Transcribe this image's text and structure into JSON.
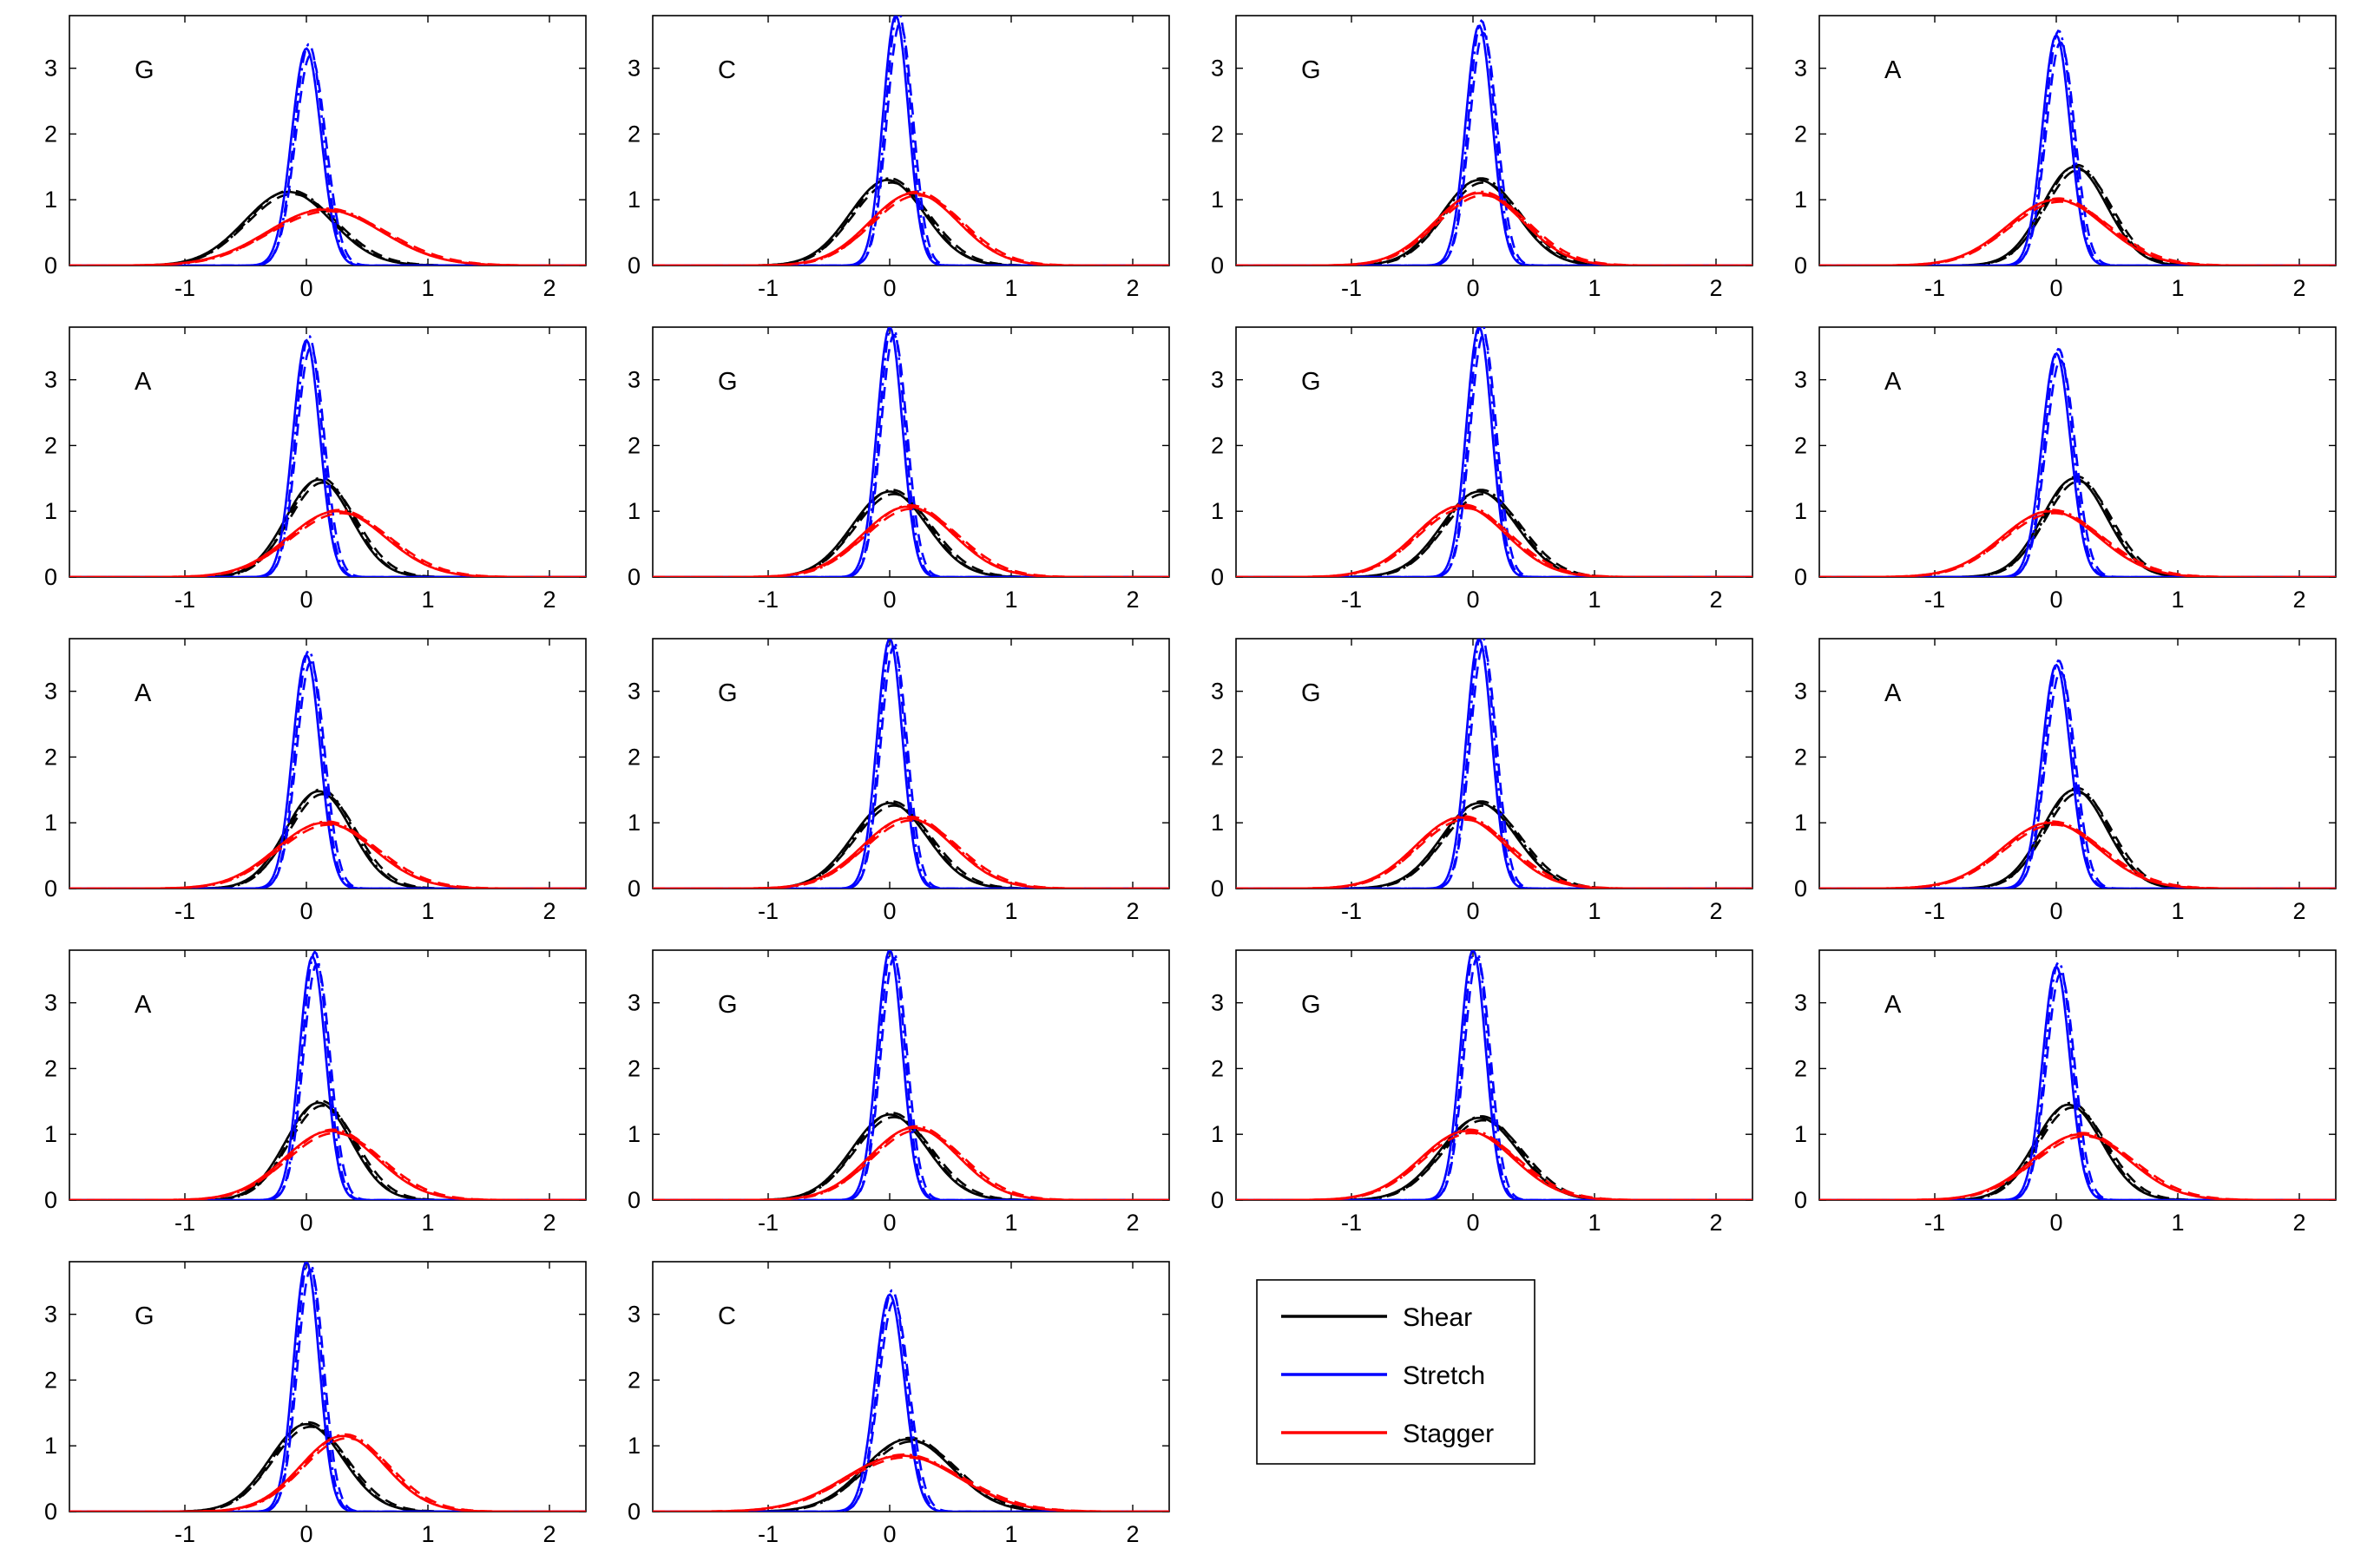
{
  "chart_data": {
    "type": "line",
    "layout": "grid of 18 small-multiple panels, 5 rows x 4 columns",
    "xlim": [
      -1.95,
      2.3
    ],
    "ylim": [
      0,
      3.8
    ],
    "xticks": [
      -1,
      0,
      1,
      2
    ],
    "yticks": [
      0,
      1,
      2,
      3
    ],
    "grid": false,
    "line_styles": [
      "solid",
      "dashed",
      "dash-dot"
    ],
    "legend": {
      "placement": "row 5, column 3",
      "entries": [
        {
          "label": "Shear",
          "color": "#000000"
        },
        {
          "label": "Stretch",
          "color": "#0000ff"
        },
        {
          "label": "Stagger",
          "color": "#ff0000"
        }
      ]
    },
    "panels": [
      {
        "label": "G",
        "series": [
          {
            "parameter": "Shear",
            "color": "#000000",
            "mean": -0.15,
            "peak": 1.12
          },
          {
            "parameter": "Stretch",
            "color": "#0000ff",
            "mean": 0.0,
            "peak": 3.3
          },
          {
            "parameter": "Stagger",
            "color": "#ff0000",
            "mean": 0.15,
            "peak": 0.85
          }
        ]
      },
      {
        "label": "C",
        "series": [
          {
            "parameter": "Shear",
            "color": "#000000",
            "mean": -0.02,
            "peak": 1.3
          },
          {
            "parameter": "Stretch",
            "color": "#0000ff",
            "mean": 0.05,
            "peak": 3.8
          },
          {
            "parameter": "Stagger",
            "color": "#ff0000",
            "mean": 0.2,
            "peak": 1.1
          }
        ]
      },
      {
        "label": "G",
        "series": [
          {
            "parameter": "Shear",
            "color": "#000000",
            "mean": 0.05,
            "peak": 1.3
          },
          {
            "parameter": "Stretch",
            "color": "#0000ff",
            "mean": 0.05,
            "peak": 3.65
          },
          {
            "parameter": "Stagger",
            "color": "#ff0000",
            "mean": 0.05,
            "peak": 1.1
          }
        ]
      },
      {
        "label": "A",
        "series": [
          {
            "parameter": "Shear",
            "color": "#000000",
            "mean": 0.15,
            "peak": 1.5
          },
          {
            "parameter": "Stretch",
            "color": "#0000ff",
            "mean": 0.0,
            "peak": 3.5
          },
          {
            "parameter": "Stagger",
            "color": "#ff0000",
            "mean": 0.0,
            "peak": 1.0
          }
        ]
      },
      {
        "label": "A",
        "series": [
          {
            "parameter": "Shear",
            "color": "#000000",
            "mean": 0.1,
            "peak": 1.48
          },
          {
            "parameter": "Stretch",
            "color": "#0000ff",
            "mean": 0.0,
            "peak": 3.6
          },
          {
            "parameter": "Stagger",
            "color": "#ff0000",
            "mean": 0.25,
            "peak": 1.0
          }
        ]
      },
      {
        "label": "G",
        "series": [
          {
            "parameter": "Shear",
            "color": "#000000",
            "mean": 0.0,
            "peak": 1.3
          },
          {
            "parameter": "Stretch",
            "color": "#0000ff",
            "mean": 0.0,
            "peak": 3.8
          },
          {
            "parameter": "Stagger",
            "color": "#ff0000",
            "mean": 0.15,
            "peak": 1.07
          }
        ]
      },
      {
        "label": "G",
        "series": [
          {
            "parameter": "Shear",
            "color": "#000000",
            "mean": 0.05,
            "peak": 1.3
          },
          {
            "parameter": "Stretch",
            "color": "#0000ff",
            "mean": 0.05,
            "peak": 3.8
          },
          {
            "parameter": "Stagger",
            "color": "#ff0000",
            "mean": -0.1,
            "peak": 1.08
          }
        ]
      },
      {
        "label": "A",
        "series": [
          {
            "parameter": "Shear",
            "color": "#000000",
            "mean": 0.15,
            "peak": 1.5
          },
          {
            "parameter": "Stretch",
            "color": "#0000ff",
            "mean": 0.0,
            "peak": 3.4
          },
          {
            "parameter": "Stagger",
            "color": "#ff0000",
            "mean": -0.05,
            "peak": 1.0
          }
        ]
      },
      {
        "label": "A",
        "series": [
          {
            "parameter": "Shear",
            "color": "#000000",
            "mean": 0.1,
            "peak": 1.48
          },
          {
            "parameter": "Stretch",
            "color": "#0000ff",
            "mean": 0.0,
            "peak": 3.55
          },
          {
            "parameter": "Stagger",
            "color": "#ff0000",
            "mean": 0.15,
            "peak": 1.0
          }
        ]
      },
      {
        "label": "G",
        "series": [
          {
            "parameter": "Shear",
            "color": "#000000",
            "mean": 0.0,
            "peak": 1.3
          },
          {
            "parameter": "Stretch",
            "color": "#0000ff",
            "mean": 0.0,
            "peak": 3.8
          },
          {
            "parameter": "Stagger",
            "color": "#ff0000",
            "mean": 0.15,
            "peak": 1.07
          }
        ]
      },
      {
        "label": "G",
        "series": [
          {
            "parameter": "Shear",
            "color": "#000000",
            "mean": 0.05,
            "peak": 1.3
          },
          {
            "parameter": "Stretch",
            "color": "#0000ff",
            "mean": 0.05,
            "peak": 3.8
          },
          {
            "parameter": "Stagger",
            "color": "#ff0000",
            "mean": -0.1,
            "peak": 1.08
          }
        ]
      },
      {
        "label": "A",
        "series": [
          {
            "parameter": "Shear",
            "color": "#000000",
            "mean": 0.15,
            "peak": 1.5
          },
          {
            "parameter": "Stretch",
            "color": "#0000ff",
            "mean": 0.0,
            "peak": 3.4
          },
          {
            "parameter": "Stagger",
            "color": "#ff0000",
            "mean": -0.05,
            "peak": 1.0
          }
        ]
      },
      {
        "label": "A",
        "series": [
          {
            "parameter": "Shear",
            "color": "#000000",
            "mean": 0.1,
            "peak": 1.48
          },
          {
            "parameter": "Stretch",
            "color": "#0000ff",
            "mean": 0.05,
            "peak": 3.7
          },
          {
            "parameter": "Stagger",
            "color": "#ff0000",
            "mean": 0.2,
            "peak": 1.05
          }
        ]
      },
      {
        "label": "G",
        "series": [
          {
            "parameter": "Shear",
            "color": "#000000",
            "mean": 0.0,
            "peak": 1.3
          },
          {
            "parameter": "Stretch",
            "color": "#0000ff",
            "mean": 0.0,
            "peak": 3.8
          },
          {
            "parameter": "Stagger",
            "color": "#ff0000",
            "mean": 0.2,
            "peak": 1.1
          }
        ]
      },
      {
        "label": "G",
        "series": [
          {
            "parameter": "Shear",
            "color": "#000000",
            "mean": 0.05,
            "peak": 1.25
          },
          {
            "parameter": "Stretch",
            "color": "#0000ff",
            "mean": 0.0,
            "peak": 3.8
          },
          {
            "parameter": "Stagger",
            "color": "#ff0000",
            "mean": -0.05,
            "peak": 1.05
          }
        ]
      },
      {
        "label": "A",
        "series": [
          {
            "parameter": "Shear",
            "color": "#000000",
            "mean": 0.1,
            "peak": 1.45
          },
          {
            "parameter": "Stretch",
            "color": "#0000ff",
            "mean": 0.0,
            "peak": 3.55
          },
          {
            "parameter": "Stagger",
            "color": "#ff0000",
            "mean": 0.2,
            "peak": 1.0
          }
        ]
      },
      {
        "label": "G",
        "series": [
          {
            "parameter": "Shear",
            "color": "#000000",
            "mean": 0.0,
            "peak": 1.33
          },
          {
            "parameter": "Stretch",
            "color": "#0000ff",
            "mean": 0.0,
            "peak": 3.8
          },
          {
            "parameter": "Stagger",
            "color": "#ff0000",
            "mean": 0.3,
            "peak": 1.15
          }
        ]
      },
      {
        "label": "C",
        "series": [
          {
            "parameter": "Shear",
            "color": "#000000",
            "mean": 0.15,
            "peak": 1.1
          },
          {
            "parameter": "Stretch",
            "color": "#0000ff",
            "mean": 0.0,
            "peak": 3.3
          },
          {
            "parameter": "Stagger",
            "color": "#ff0000",
            "mean": 0.1,
            "peak": 0.85
          }
        ]
      }
    ]
  }
}
